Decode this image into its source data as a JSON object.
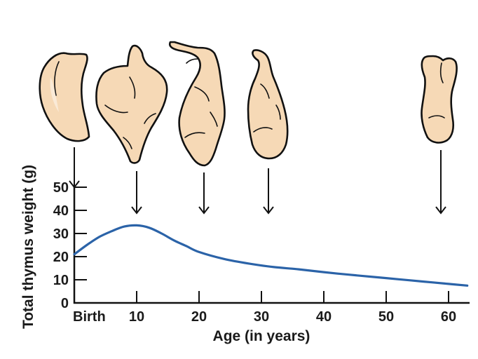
{
  "chart_data": {
    "type": "line",
    "xlabel": "Age (in years)",
    "ylabel": "Total thymus weight (g)",
    "xlim": [
      0,
      63
    ],
    "ylim": [
      0,
      50
    ],
    "x_ticks": [
      {
        "value": 0,
        "label": "Birth"
      },
      {
        "value": 10,
        "label": "10"
      },
      {
        "value": 20,
        "label": "20"
      },
      {
        "value": 30,
        "label": "30"
      },
      {
        "value": 40,
        "label": "40"
      },
      {
        "value": 50,
        "label": "50"
      },
      {
        "value": 60,
        "label": "60"
      }
    ],
    "y_ticks": [
      0,
      10,
      20,
      30,
      40,
      50
    ],
    "series": [
      {
        "color": "#2b63a8",
        "x": [
          0,
          2,
          4,
          6,
          8,
          10,
          12,
          14,
          16,
          18,
          20,
          24,
          28,
          32,
          36,
          40,
          44,
          48,
          52,
          56,
          60,
          63
        ],
        "y": [
          21,
          25,
          28.5,
          31,
          33,
          33.5,
          32.5,
          30,
          27,
          24.5,
          22,
          19,
          17,
          15.5,
          14.5,
          13.3,
          12.2,
          11.2,
          10.2,
          9.2,
          8.2,
          7.5
        ]
      }
    ],
    "annotations": [
      {
        "type": "thymus-illustration",
        "age": 0
      },
      {
        "type": "thymus-illustration",
        "age": 10
      },
      {
        "type": "thymus-illustration",
        "age": 20
      },
      {
        "type": "thymus-illustration",
        "age": 30
      },
      {
        "type": "thymus-illustration",
        "age": 60
      }
    ]
  }
}
